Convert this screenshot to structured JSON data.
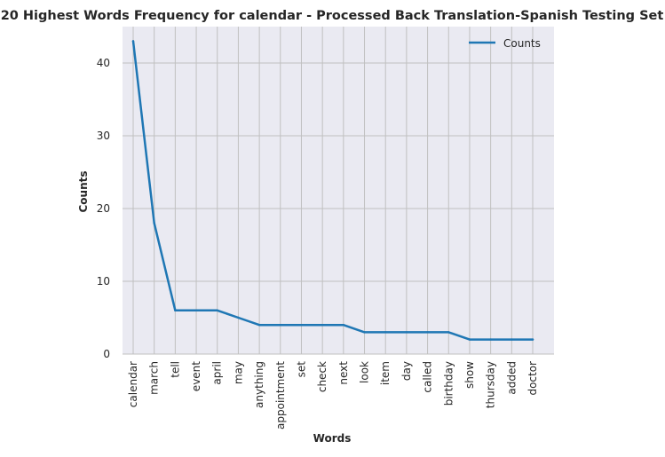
{
  "colors": {
    "background": "#ffffff",
    "plot_background": "#eaeaf2",
    "grid": "#c0c0c0",
    "line": "#1f77b4",
    "text": "#262626"
  },
  "chart_data": {
    "type": "line",
    "title": "20 Highest Words Frequency for calendar - Processed Back Translation-Spanish Testing Set",
    "xlabel": "Words",
    "ylabel": "Counts",
    "categories": [
      "calendar",
      "march",
      "tell",
      "event",
      "april",
      "may",
      "anything",
      "appointment",
      "set",
      "check",
      "next",
      "look",
      "item",
      "day",
      "called",
      "birthday",
      "show",
      "thursday",
      "added",
      "doctor"
    ],
    "series": [
      {
        "name": "Counts",
        "values": [
          43,
          18,
          6,
          6,
          6,
          5,
          4,
          4,
          4,
          4,
          4,
          3,
          3,
          3,
          3,
          3,
          2,
          2,
          2,
          2
        ]
      }
    ],
    "ylim": [
      0,
      45
    ],
    "yticks": [
      0,
      10,
      20,
      30,
      40
    ],
    "grid": true,
    "legend": "top-right"
  }
}
